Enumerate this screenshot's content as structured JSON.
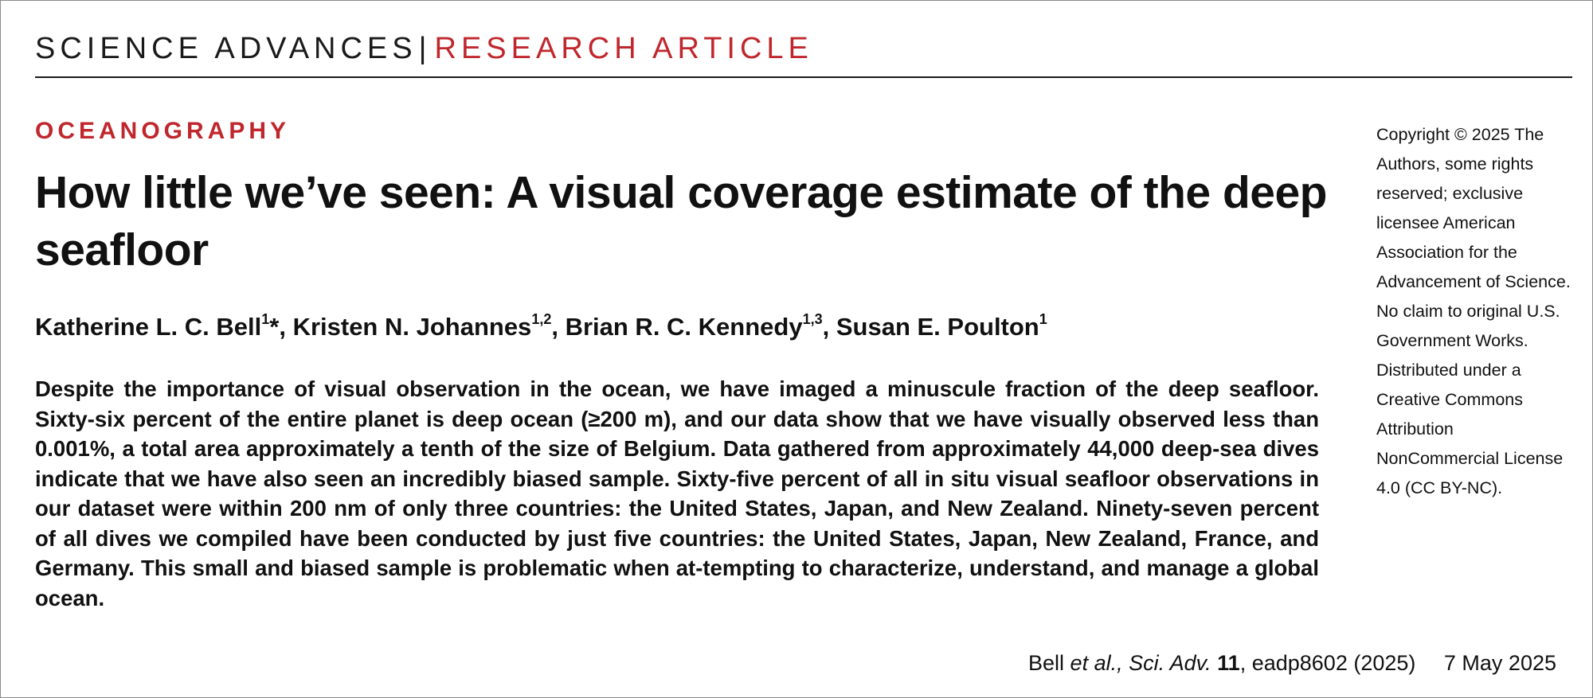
{
  "header": {
    "journal": "SCIENCE ADVANCES",
    "separator": "|",
    "article_type": "RESEARCH ARTICLE"
  },
  "article": {
    "section": "OCEANOGRAPHY",
    "title": "How little we’ve seen: A visual coverage estimate of the deep seafloor",
    "authors": [
      {
        "name": "Katherine L. C. Bell",
        "affil": "1",
        "corresponding_mark": "*",
        "sep": ", "
      },
      {
        "name": "Kristen N. Johannes",
        "affil": "1,2",
        "corresponding_mark": "",
        "sep": ", "
      },
      {
        "name": "Brian R. C. Kennedy",
        "affil": "1,3",
        "corresponding_mark": "",
        "sep": ", "
      },
      {
        "name": "Susan E. Poulton",
        "affil": "1",
        "corresponding_mark": "",
        "sep": ""
      }
    ],
    "abstract": "Despite the importance of visual observation in the ocean, we have imaged a minuscule fraction of the deep sea­floor. Sixty-six percent of the entire planet is deep ocean (≥200 m), and our data show that we have visually ob­served less than 0.001%, a total area approximately a tenth of the size of Belgium. Data gathered from approximately 44,000 deep-sea dives indicate that we have also seen an incredibly biased sample. Sixty-five percent of all in situ visual seafloor observations in our dataset were within 200 nm of only three countries: the United States, Japan, and New Zealand. Ninety-seven percent of all dives we compiled have been conducted by just five countries: the United States, Japan, New Zealand, France, and Germany. This small and biased sample is problematic when at-tempting to characterize, understand, and manage a global ocean."
  },
  "sidebar": {
    "copyright": "Copyright © 2025 The Authors, some rights reserved; exclusive licensee American Association for the Advancement of Science. No claim to original U.S. Government Works. Distributed under a Creative Commons Attribution NonCommercial License 4.0 (CC BY-NC)."
  },
  "footer": {
    "first_author": "Bell",
    "et_al": "et al.,",
    "journal_abbrev": "Sci. Adv.",
    "volume": "11",
    "article_id": ", eadp8602 (2025)",
    "date": "7 May 2025"
  },
  "colors": {
    "accent": "#c0272d",
    "text": "#111111",
    "rule": "#1a1a1a"
  }
}
